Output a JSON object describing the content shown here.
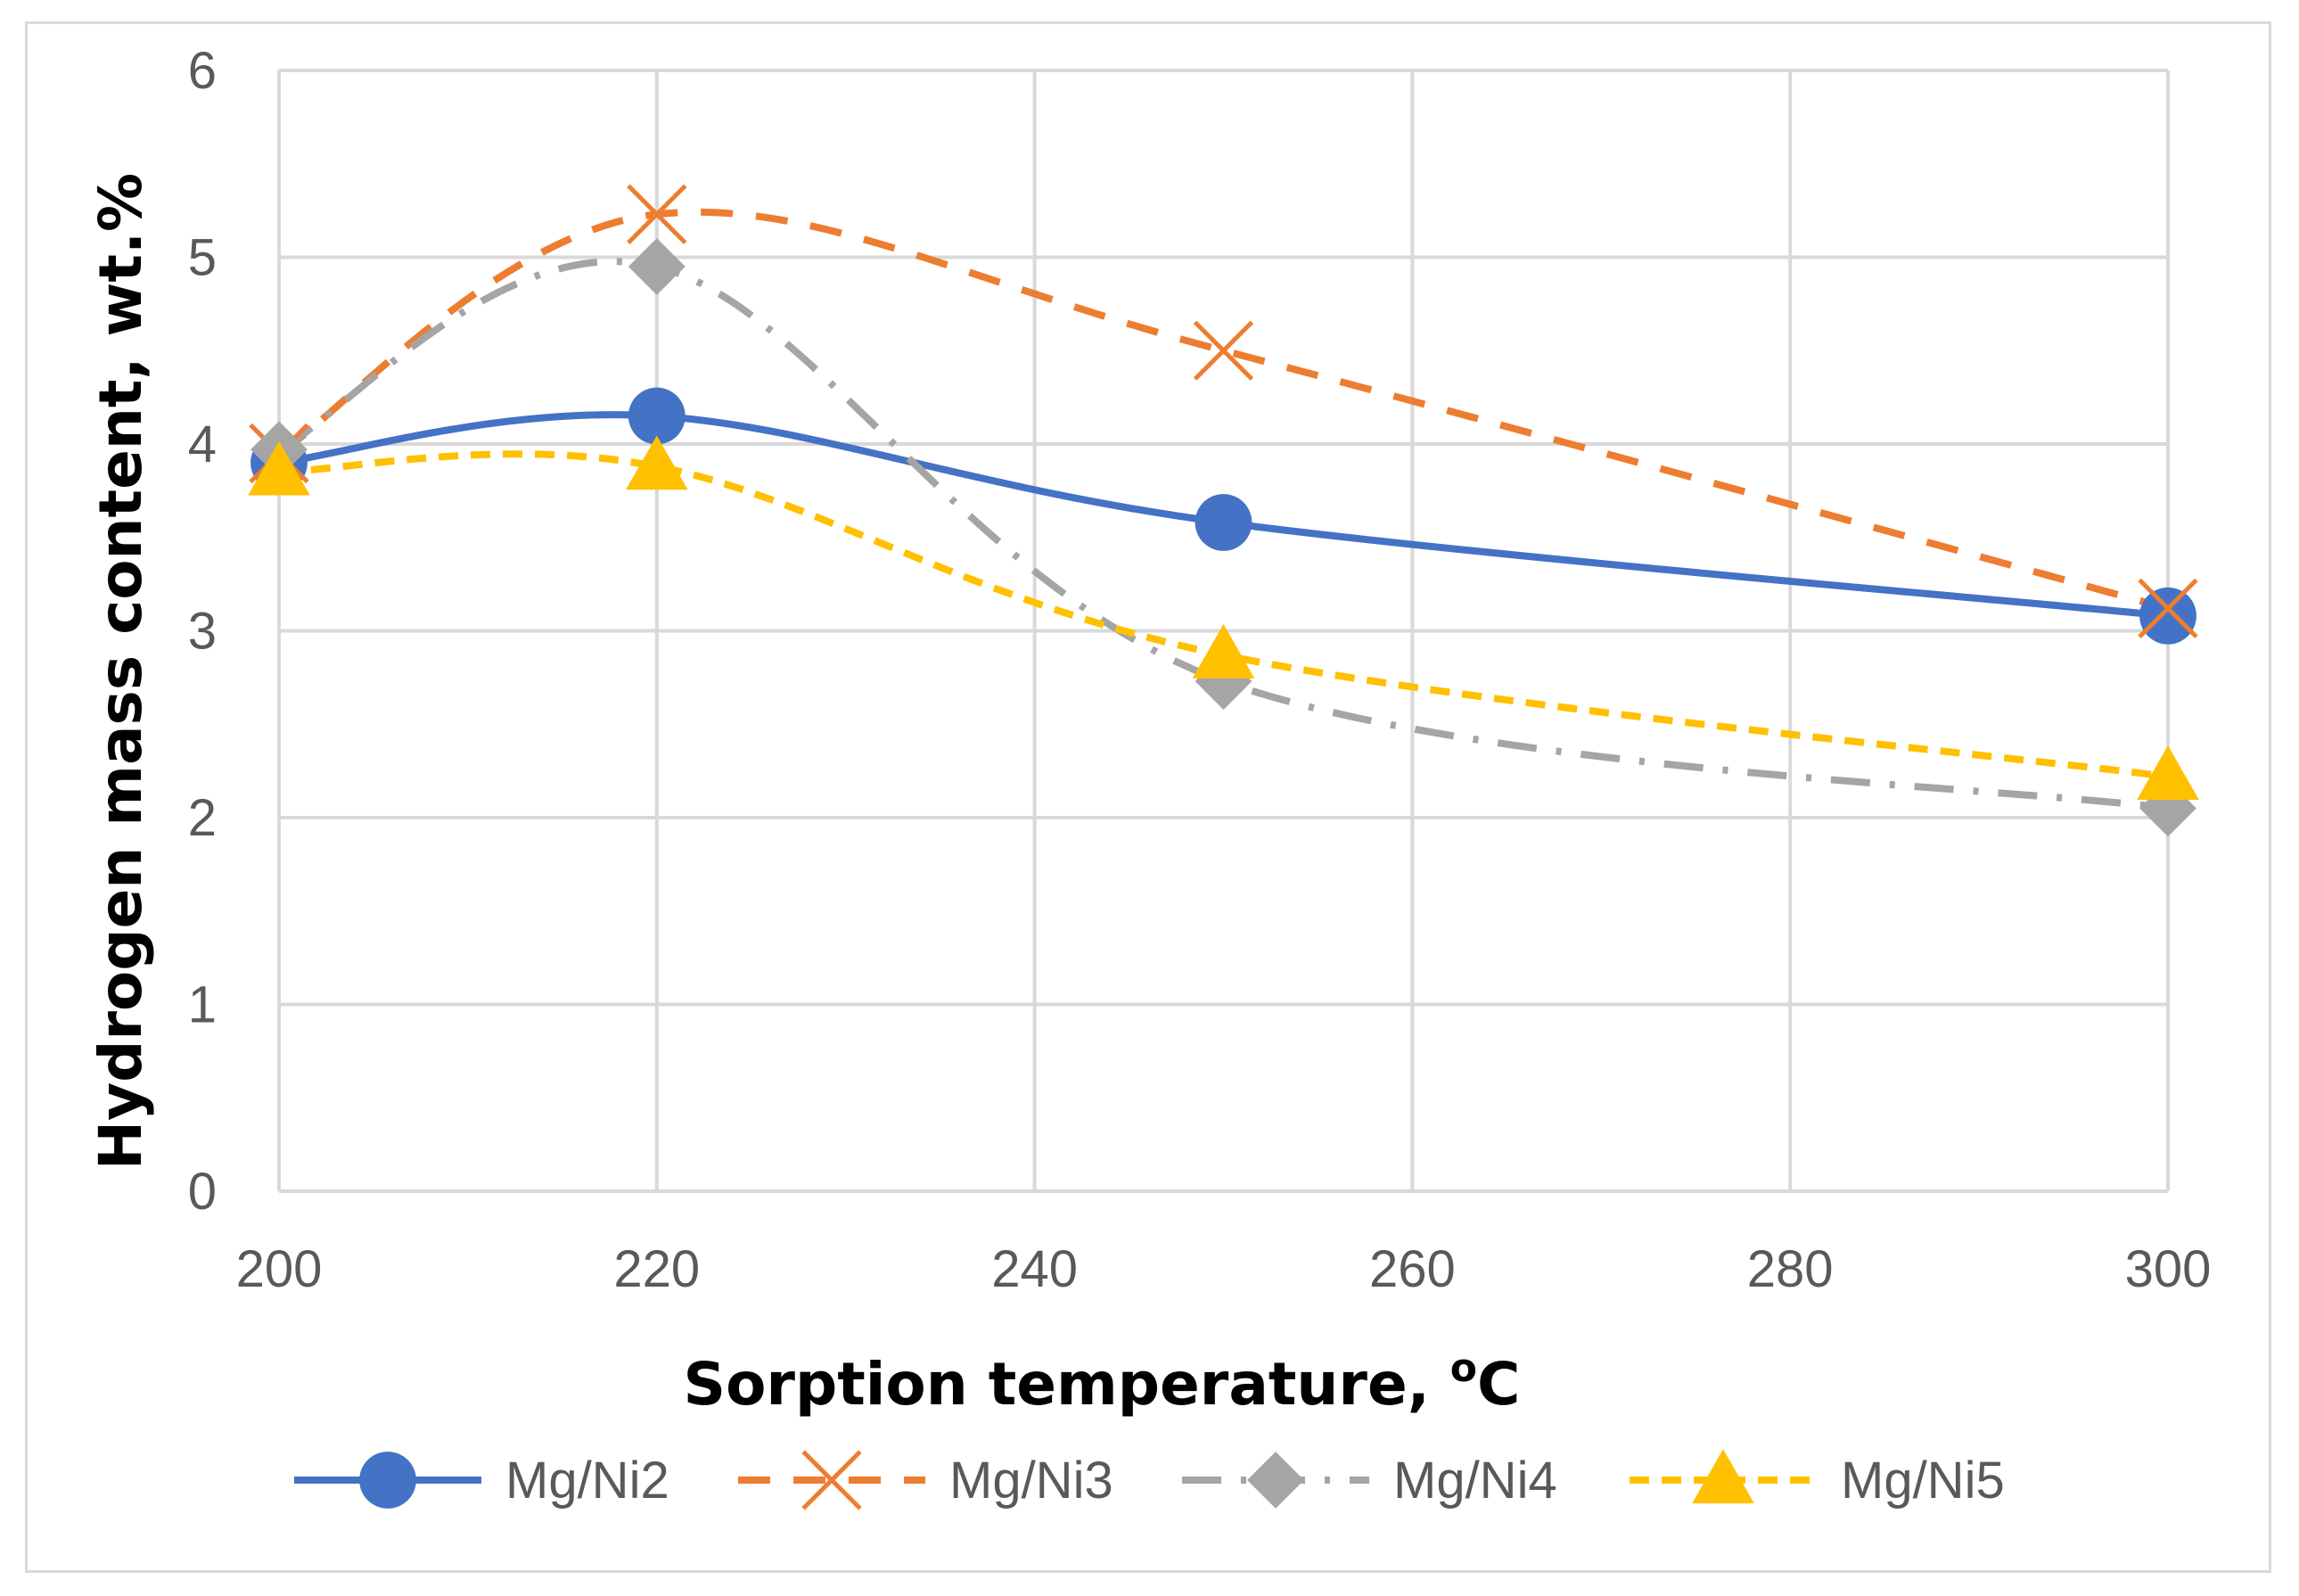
{
  "chart_data": {
    "type": "line",
    "title": "",
    "xlabel": "Sorption temperature, ",
    "xlabel_unit_sup": "o",
    "xlabel_unit": "C",
    "ylabel": "Hydrogen mass content, wt.%",
    "x": [
      200,
      220,
      250,
      300
    ],
    "xlim": [
      200,
      300
    ],
    "ylim": [
      0,
      6
    ],
    "xticks": [
      "200",
      "220",
      "240",
      "260",
      "280",
      "300"
    ],
    "yticks": [
      "0",
      "1",
      "2",
      "3",
      "4",
      "5",
      "6"
    ],
    "grid": true,
    "legend_position": "bottom",
    "series": [
      {
        "name": "Mg/Ni2",
        "values": [
          3.9,
          4.15,
          3.58,
          3.08
        ],
        "color": "#4472c4",
        "marker": "circle",
        "dash": "solid"
      },
      {
        "name": "Mg/Ni3",
        "values": [
          3.95,
          5.23,
          4.5,
          3.12
        ],
        "color": "#ed7d31",
        "marker": "x",
        "dash": "dash"
      },
      {
        "name": "Mg/Ni4",
        "values": [
          3.97,
          4.95,
          2.73,
          2.05
        ],
        "color": "#a5a5a5",
        "marker": "diamond",
        "dash": "dashdot"
      },
      {
        "name": "Mg/Ni5",
        "values": [
          3.85,
          3.88,
          2.87,
          2.22
        ],
        "color": "#ffc000",
        "marker": "triangle",
        "dash": "shortdash"
      }
    ]
  }
}
